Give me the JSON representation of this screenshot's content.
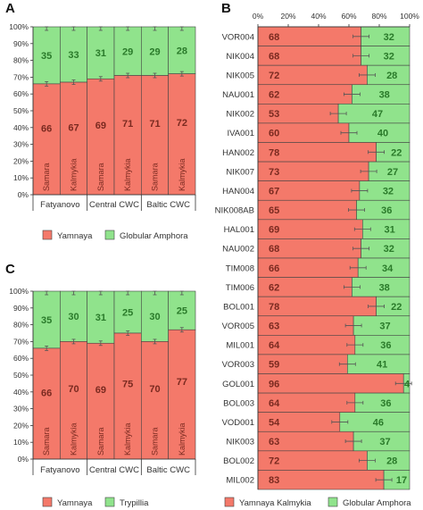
{
  "colors": {
    "red": "#f4796a",
    "green": "#90e38c",
    "red_text": "#7a2a20",
    "green_text": "#2a7a2a",
    "axis": "#333333"
  },
  "chart_data": [
    {
      "panel": "A",
      "type": "bar",
      "stacked": true,
      "orientation": "vertical",
      "categories": [
        "Samara",
        "Kalmykia",
        "Samara",
        "Kalmykia",
        "Samara",
        "Kalmykia"
      ],
      "groups": [
        "Fatyanovo",
        "Central CWC",
        "Baltic CWC"
      ],
      "series": [
        {
          "name": "Yamnaya",
          "values": [
            66,
            67,
            69,
            71,
            71,
            72
          ]
        },
        {
          "name": "Globular Amphora",
          "values": [
            35,
            33,
            31,
            29,
            29,
            28
          ]
        }
      ],
      "ylim": [
        0,
        100
      ],
      "yticks": [
        "0%",
        "10%",
        "20%",
        "30%",
        "40%",
        "50%",
        "60%",
        "70%",
        "80%",
        "90%",
        "100%"
      ]
    },
    {
      "panel": "C",
      "type": "bar",
      "stacked": true,
      "orientation": "vertical",
      "categories": [
        "Samara",
        "Kalmykia",
        "Samara",
        "Kalmykia",
        "Samara",
        "Kalmykia"
      ],
      "groups": [
        "Fatyanovo",
        "Central CWC",
        "Baltic CWC"
      ],
      "series": [
        {
          "name": "Yamnaya",
          "values": [
            66,
            70,
            69,
            75,
            70,
            77
          ]
        },
        {
          "name": "Trypillia",
          "values": [
            35,
            30,
            31,
            25,
            30,
            25
          ]
        }
      ],
      "ylim": [
        0,
        100
      ],
      "yticks": [
        "0%",
        "10%",
        "20%",
        "30%",
        "40%",
        "50%",
        "60%",
        "70%",
        "80%",
        "90%",
        "100%"
      ]
    },
    {
      "panel": "B",
      "type": "bar",
      "stacked": true,
      "orientation": "horizontal",
      "categories": [
        "VOR004",
        "NIK004",
        "NIK005",
        "NAU001",
        "NIK002",
        "IVA001",
        "HAN002",
        "NIK007",
        "HAN004",
        "NIK008AB",
        "HAL001",
        "NAU002",
        "TIM008",
        "TIM006",
        "BOL001",
        "VOR005",
        "MIL001",
        "VOR003",
        "GOL001",
        "BOL003",
        "VOD001",
        "NIK003",
        "BOL002",
        "MIL002"
      ],
      "series": [
        {
          "name": "Yamnaya Kalmykia",
          "values": [
            68,
            68,
            72,
            62,
            53,
            60,
            78,
            73,
            67,
            65,
            69,
            68,
            66,
            62,
            78,
            63,
            64,
            59,
            96,
            64,
            54,
            63,
            72,
            83
          ]
        },
        {
          "name": "Globular Amphora",
          "values": [
            32,
            32,
            28,
            38,
            47,
            40,
            22,
            27,
            32,
            36,
            31,
            32,
            34,
            38,
            22,
            37,
            36,
            41,
            4,
            36,
            46,
            37,
            28,
            17
          ]
        }
      ],
      "xlim": [
        0,
        100
      ],
      "xticks": [
        "0%",
        "20%",
        "40%",
        "60%",
        "80%",
        "100%"
      ]
    }
  ]
}
